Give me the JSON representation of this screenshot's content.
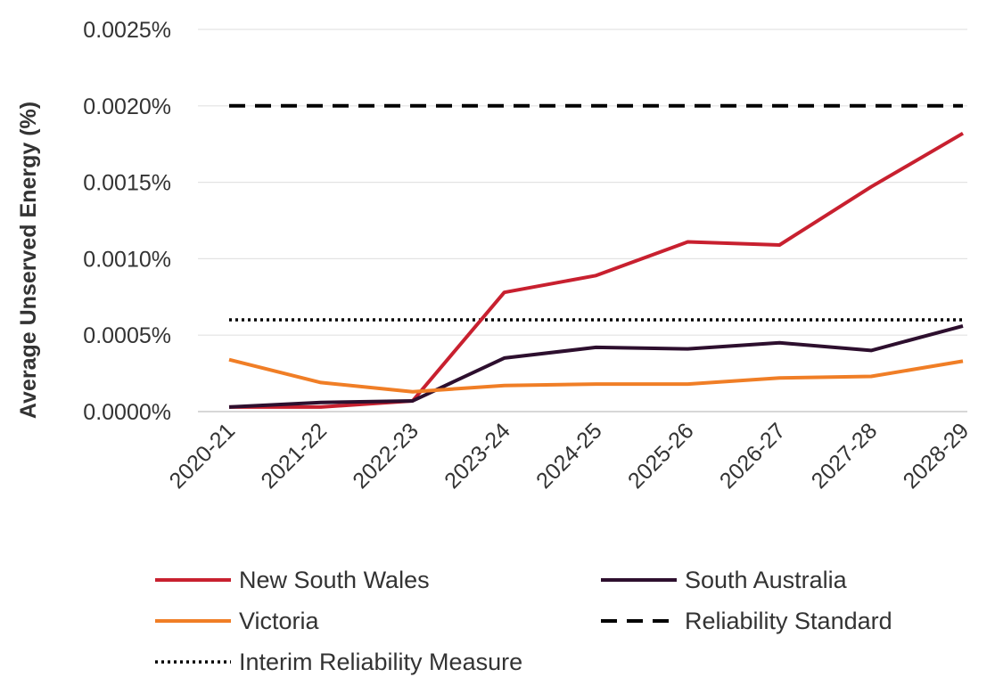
{
  "chart_data": {
    "type": "line",
    "title": "",
    "xlabel": "",
    "ylabel": "Average Unserved Energy (%)",
    "categories": [
      "2020-21",
      "2021-22",
      "2022-23",
      "2023-24",
      "2024-25",
      "2025-26",
      "2026-27",
      "2027-28",
      "2028-29"
    ],
    "y_ticks": [
      "0.0000%",
      "0.0005%",
      "0.0010%",
      "0.0015%",
      "0.0020%",
      "0.0025%"
    ],
    "ylim": [
      0,
      0.0025
    ],
    "grid": "horizontal",
    "legend_position": "bottom",
    "series": [
      {
        "name": "New South Wales",
        "color": "#c8202f",
        "style": "solid",
        "values": [
          3e-05,
          3e-05,
          7e-05,
          0.00078,
          0.00089,
          0.00111,
          0.00109,
          0.00147,
          0.00182
        ]
      },
      {
        "name": "South Australia",
        "color": "#2d0f2e",
        "style": "solid",
        "values": [
          3e-05,
          6e-05,
          7e-05,
          0.00035,
          0.00042,
          0.00041,
          0.00045,
          0.0004,
          0.00056
        ]
      },
      {
        "name": "Victoria",
        "color": "#f07e26",
        "style": "solid",
        "values": [
          0.00034,
          0.00019,
          0.00013,
          0.00017,
          0.00018,
          0.00018,
          0.00022,
          0.00023,
          0.00033
        ]
      },
      {
        "name": "Reliability Standard",
        "color": "#000000",
        "style": "dashed",
        "values": [
          0.002,
          0.002,
          0.002,
          0.002,
          0.002,
          0.002,
          0.002,
          0.002,
          0.002
        ]
      },
      {
        "name": "Interim Reliability Measure",
        "color": "#000000",
        "style": "dotted",
        "values": [
          0.0006,
          0.0006,
          0.0006,
          0.0006,
          0.0006,
          0.0006,
          0.0006,
          0.0006,
          0.0006
        ]
      }
    ]
  }
}
